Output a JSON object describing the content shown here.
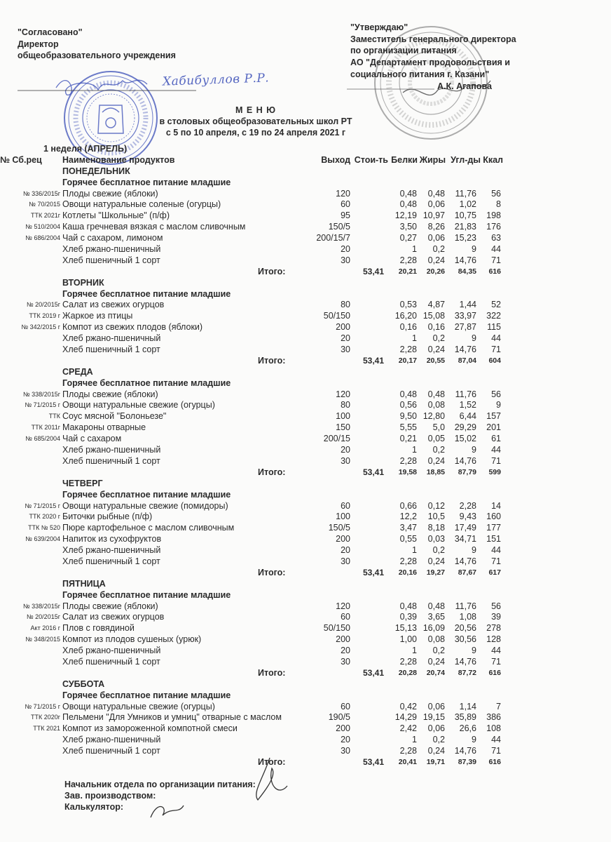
{
  "approval_left": {
    "label": "\"Согласовано\"",
    "position": "Директор",
    "org": "общеобразовательного учреждения"
  },
  "approval_right": {
    "label": "\"Утверждаю\"",
    "line1": "Заместитель генерального директора",
    "line2": "по организации питания",
    "line3": "АО  \"Департамент  продовольствия  и",
    "line4": "социального питания г. Казани\"",
    "signer": "А.К. Агапова"
  },
  "title": {
    "heading": "М Е Н Ю",
    "subtitle": "в столовых общеобразовательных школ РТ",
    "dates": "с  5  по  10  апреля, с  19  по  24  апреля  2021 г"
  },
  "week_label": "1 неделя (АПРЕЛЬ)",
  "columns": {
    "code": "№ Сб.рец",
    "name": "Наименование продуктов",
    "output": "Выход",
    "cost": "Стои-ть",
    "protein": "Белки",
    "fat": "Жиры",
    "carbs": "Угл-ды",
    "kcal": "Ккал"
  },
  "total_label": "Итого:",
  "days": [
    {
      "name": "ПОНЕДЕЛЬНИК",
      "group": "Горячее бесплатное питание младшие",
      "items": [
        [
          "№ 336/2015г",
          "Плоды свежие (яблоки)",
          "120",
          "0,48",
          "0,48",
          "11,76",
          "56"
        ],
        [
          "№ 70/2015",
          "Овощи натуральные соленые (огурцы)",
          "60",
          "0,48",
          "0,06",
          "1,02",
          "8"
        ],
        [
          "ТТК 2021г",
          "Котлеты \"Школьные\"  (п/ф)",
          "95",
          "12,19",
          "10,97",
          "10,75",
          "198"
        ],
        [
          "№ 510/2004",
          "Каша гречневая вязкая с маслом сливочным",
          "150/5",
          "3,50",
          "8,26",
          "21,83",
          "176"
        ],
        [
          "№ 686/2004",
          "Чай с сахаром, лимоном",
          "200/15/7",
          "0,27",
          "0,06",
          "15,23",
          "63"
        ],
        [
          "",
          "Хлеб ржано-пшеничный",
          "20",
          "1",
          "0,2",
          "9",
          "44"
        ],
        [
          "",
          "Хлеб пшеничный 1 сорт",
          "30",
          "2,28",
          "0,24",
          "14,76",
          "71"
        ]
      ],
      "total": [
        "53,41",
        "20,21",
        "20,26",
        "84,35",
        "616"
      ]
    },
    {
      "name": "ВТОРНИК",
      "group": "Горячее бесплатное питание младшие",
      "items": [
        [
          "№ 20/2015г",
          "Салат из свежих огурцов",
          "80",
          "0,53",
          "4,87",
          "1,44",
          "52"
        ],
        [
          "ТТК 2019 г",
          "Жаркое из птицы",
          "50/150",
          "16,20",
          "15,08",
          "33,97",
          "322"
        ],
        [
          "№ 342/2015 г",
          "Компот из свежих плодов (яблоки)",
          "200",
          "0,16",
          "0,16",
          "27,87",
          "115"
        ],
        [
          "",
          "Хлеб ржано-пшеничный",
          "20",
          "1",
          "0,2",
          "9",
          "44"
        ],
        [
          "",
          "Хлеб пшеничный 1 сорт",
          "30",
          "2,28",
          "0,24",
          "14,76",
          "71"
        ]
      ],
      "total": [
        "53,41",
        "20,17",
        "20,55",
        "87,04",
        "604"
      ]
    },
    {
      "name": "СРЕДА",
      "group": "Горячее бесплатное питание младшие",
      "items": [
        [
          "№ 338/2015г",
          "Плоды свежие (яблоки)",
          "120",
          "0,48",
          "0,48",
          "11,76",
          "56"
        ],
        [
          "№ 71/2015 г",
          "Овощи натуральные свежие (огурцы)",
          "80",
          "0,56",
          "0,08",
          "1,52",
          "9"
        ],
        [
          "ТТК",
          "Соус мясной \"Болоньезе\"",
          "100",
          "9,50",
          "12,80",
          "6,44",
          "157"
        ],
        [
          "ТТК 2011г",
          "Макароны  отварные",
          "150",
          "5,55",
          "5,0",
          "29,29",
          "201"
        ],
        [
          "№ 685/2004",
          "Чай с сахаром",
          "200/15",
          "0,21",
          "0,05",
          "15,02",
          "61"
        ],
        [
          "",
          "Хлеб ржано-пшеничный",
          "20",
          "1",
          "0,2",
          "9",
          "44"
        ],
        [
          "",
          "Хлеб пшеничный 1 сорт",
          "30",
          "2,28",
          "0,24",
          "14,76",
          "71"
        ]
      ],
      "total": [
        "53,41",
        "19,58",
        "18,85",
        "87,79",
        "599"
      ]
    },
    {
      "name": "ЧЕТВЕРГ",
      "group": "Горячее бесплатное питание младшие",
      "items": [
        [
          "№ 71/2015 г",
          "Овощи натуральные свежие (помидоры)",
          "60",
          "0,66",
          "0,12",
          "2,28",
          "14"
        ],
        [
          "ТТК 2020 г",
          "Биточки рыбные  (п/ф)",
          "100",
          "12,2",
          "10,5",
          "9,43",
          "160"
        ],
        [
          "ТТК № 520",
          "Пюре картофельное с маслом сливочным",
          "150/5",
          "3,47",
          "8,18",
          "17,49",
          "177"
        ],
        [
          "№ 639/2004",
          "Напиток из сухофруктов",
          "200",
          "0,55",
          "0,03",
          "34,71",
          "151"
        ],
        [
          "",
          "Хлеб ржано-пшеничный",
          "20",
          "1",
          "0,2",
          "9",
          "44"
        ],
        [
          "",
          "Хлеб пшеничный 1 сорт",
          "30",
          "2,28",
          "0,24",
          "14,76",
          "71"
        ]
      ],
      "total": [
        "53,41",
        "20,16",
        "19,27",
        "87,67",
        "617"
      ]
    },
    {
      "name": "ПЯТНИЦА",
      "group": "Горячее бесплатное питание младшие",
      "items": [
        [
          "№ 338/2015г",
          "Плоды свежие (яблоки)",
          "120",
          "0,48",
          "0,48",
          "11,76",
          "56"
        ],
        [
          "№ 20/2015г",
          "Салат из свежих огурцов",
          "60",
          "0,39",
          "3,65",
          "1,08",
          "39"
        ],
        [
          "Акт 2016 г",
          "Плов с говядиной",
          "50/150",
          "15,13",
          "16,09",
          "20,56",
          "278"
        ],
        [
          "№ 348/2015",
          "Компот из плодов сушеных (урюк)",
          "200",
          "1,00",
          "0,08",
          "30,56",
          "128"
        ],
        [
          "",
          "Хлеб ржано-пшеничный",
          "20",
          "1",
          "0,2",
          "9",
          "44"
        ],
        [
          "",
          "Хлеб пшеничный 1 сорт",
          "30",
          "2,28",
          "0,24",
          "14,76",
          "71"
        ]
      ],
      "total": [
        "53,41",
        "20,28",
        "20,74",
        "87,72",
        "616"
      ]
    },
    {
      "name": "СУББОТА",
      "group": "Горячее бесплатное питание младшие",
      "items": [
        [
          "№ 71/2015 г",
          "Овощи натуральные свежие (огурцы)",
          "60",
          "0,42",
          "0,06",
          "1,14",
          "7"
        ],
        [
          "ТТК 2020г",
          "Пельмени \"Для Умников и умниц\" отварные с маслом",
          "190/5",
          "14,29",
          "19,15",
          "35,89",
          "386"
        ],
        [
          "ТТК 2021",
          "Компот из замороженной компотной смеси",
          "200",
          "2,42",
          "0,06",
          "26,6",
          "108"
        ],
        [
          "",
          "Хлеб ржано-пшеничный",
          "20",
          "1",
          "0,2",
          "9",
          "44"
        ],
        [
          "",
          "Хлеб пшеничный 1 сорт",
          "30",
          "2,28",
          "0,24",
          "14,76",
          "71"
        ]
      ],
      "total": [
        "53,41",
        "20,41",
        "19,71",
        "87,39",
        "616"
      ]
    }
  ],
  "footer": {
    "line1": "Начальник отдела по организации питания:",
    "line2": "Зав. производством:",
    "line3": "Калькулятор:"
  },
  "signatures": {
    "left_handwritten": "Хабибуллов Р.Р."
  },
  "colors": {
    "stamp_blue": "#3b4fb8",
    "stamp_gray": "#7a7a7a",
    "text": "#2a2a2a"
  }
}
